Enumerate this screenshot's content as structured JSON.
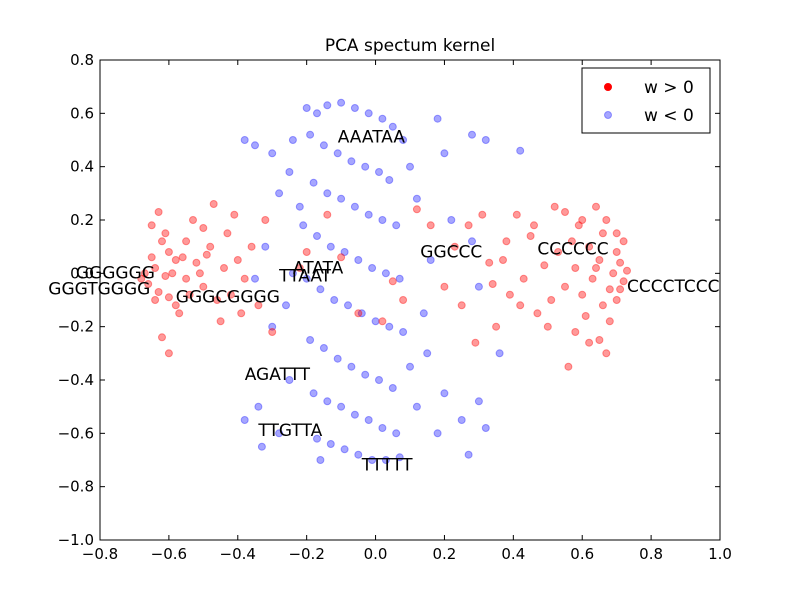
{
  "chart_data": {
    "type": "scatter",
    "title": "PCA spectum kernel",
    "xlabel": "",
    "ylabel": "",
    "xlim": [
      -0.8,
      1.0
    ],
    "ylim": [
      -1.0,
      0.8
    ],
    "xticks": [
      "−0.8",
      "−0.6",
      "−0.4",
      "−0.2",
      "0.0",
      "0.2",
      "0.4",
      "0.6",
      "0.8",
      "1.0"
    ],
    "yticks": [
      "−1.0",
      "−0.8",
      "−0.6",
      "−0.4",
      "−0.2",
      "0.0",
      "0.2",
      "0.4",
      "0.6",
      "0.8"
    ],
    "grid": false,
    "legend_position": "top-right",
    "colors": {
      "positive": "#ff0000",
      "negative": "#0000ff"
    },
    "series": [
      {
        "name": "w > 0",
        "color": "#ff0000",
        "points": [
          [
            -0.63,
            0.23
          ],
          [
            -0.65,
            0.18
          ],
          [
            -0.62,
            0.12
          ],
          [
            -0.6,
            0.08
          ],
          [
            -0.58,
            0.05
          ],
          [
            -0.64,
            0.02
          ],
          [
            -0.61,
            -0.01
          ],
          [
            -0.66,
            -0.04
          ],
          [
            -0.63,
            -0.07
          ],
          [
            -0.6,
            -0.09
          ],
          [
            -0.58,
            -0.12
          ],
          [
            -0.55,
            -0.02
          ],
          [
            -0.52,
            0.04
          ],
          [
            -0.5,
            -0.05
          ],
          [
            -0.48,
            0.1
          ],
          [
            -0.46,
            -0.1
          ],
          [
            -0.44,
            0.02
          ],
          [
            -0.42,
            -0.08
          ],
          [
            -0.55,
            0.12
          ],
          [
            -0.57,
            -0.15
          ],
          [
            -0.62,
            -0.24
          ],
          [
            -0.6,
            -0.3
          ],
          [
            -0.53,
            0.2
          ],
          [
            -0.5,
            0.17
          ],
          [
            -0.47,
            0.26
          ],
          [
            -0.45,
            -0.18
          ],
          [
            -0.43,
            0.15
          ],
          [
            -0.4,
            0.05
          ],
          [
            -0.38,
            -0.02
          ],
          [
            -0.36,
            0.1
          ],
          [
            -0.34,
            -0.12
          ],
          [
            -0.32,
            0.2
          ],
          [
            -0.3,
            -0.22
          ],
          [
            -0.41,
            0.22
          ],
          [
            -0.39,
            -0.15
          ],
          [
            -0.67,
            0.0
          ],
          [
            -0.68,
            -0.02
          ],
          [
            -0.65,
            0.06
          ],
          [
            -0.59,
            0.0
          ],
          [
            -0.56,
            0.06
          ],
          [
            -0.54,
            -0.08
          ],
          [
            -0.51,
            0.0
          ],
          [
            -0.49,
            0.07
          ],
          [
            -0.64,
            -0.1
          ],
          [
            -0.61,
            0.15
          ],
          [
            0.72,
            0.12
          ],
          [
            0.7,
            0.08
          ],
          [
            0.71,
            0.04
          ],
          [
            0.69,
            0.0
          ],
          [
            0.72,
            -0.03
          ],
          [
            0.68,
            -0.06
          ],
          [
            0.7,
            -0.1
          ],
          [
            0.66,
            0.15
          ],
          [
            0.67,
            0.2
          ],
          [
            0.64,
            0.25
          ],
          [
            0.65,
            0.05
          ],
          [
            0.63,
            -0.02
          ],
          [
            0.62,
            0.1
          ],
          [
            0.6,
            -0.08
          ],
          [
            0.58,
            0.02
          ],
          [
            0.66,
            -0.12
          ],
          [
            0.68,
            -0.18
          ],
          [
            0.65,
            -0.25
          ],
          [
            0.67,
            -0.3
          ],
          [
            0.61,
            -0.16
          ],
          [
            0.59,
            0.18
          ],
          [
            0.57,
            0.12
          ],
          [
            0.55,
            -0.05
          ],
          [
            0.53,
            0.08
          ],
          [
            0.51,
            -0.1
          ],
          [
            0.49,
            0.03
          ],
          [
            0.47,
            -0.15
          ],
          [
            0.45,
            0.14
          ],
          [
            0.43,
            -0.02
          ],
          [
            0.41,
            0.22
          ],
          [
            0.39,
            -0.08
          ],
          [
            0.37,
            0.05
          ],
          [
            0.35,
            -0.2
          ],
          [
            0.33,
            0.04
          ],
          [
            0.31,
            0.22
          ],
          [
            0.29,
            -0.26
          ],
          [
            0.27,
            0.18
          ],
          [
            0.25,
            -0.12
          ],
          [
            0.23,
            0.1
          ],
          [
            0.2,
            -0.05
          ],
          [
            0.52,
            0.25
          ],
          [
            0.55,
            0.23
          ],
          [
            0.58,
            -0.22
          ],
          [
            0.62,
            -0.26
          ],
          [
            0.56,
            -0.35
          ],
          [
            0.7,
            0.15
          ],
          [
            0.73,
            0.01
          ],
          [
            0.71,
            -0.06
          ],
          [
            0.64,
            0.02
          ],
          [
            0.6,
            0.2
          ],
          [
            0.5,
            -0.2
          ],
          [
            0.46,
            0.18
          ],
          [
            0.42,
            -0.12
          ],
          [
            0.38,
            0.12
          ],
          [
            0.34,
            -0.04
          ],
          [
            -0.2,
            0.08
          ],
          [
            -0.1,
            0.06
          ],
          [
            0.05,
            -0.03
          ],
          [
            0.12,
            0.24
          ],
          [
            -0.05,
            -0.15
          ],
          [
            0.16,
            0.18
          ],
          [
            -0.22,
            0.02
          ],
          [
            0.08,
            -0.1
          ],
          [
            -0.14,
            0.22
          ],
          [
            0.02,
            -0.18
          ]
        ]
      },
      {
        "name": "w < 0",
        "color": "#0000ff",
        "points": [
          [
            -0.2,
            0.62
          ],
          [
            -0.17,
            0.6
          ],
          [
            -0.14,
            0.63
          ],
          [
            -0.1,
            0.64
          ],
          [
            -0.06,
            0.62
          ],
          [
            -0.02,
            0.6
          ],
          [
            0.02,
            0.58
          ],
          [
            0.05,
            0.55
          ],
          [
            -0.19,
            0.52
          ],
          [
            -0.15,
            0.48
          ],
          [
            -0.11,
            0.45
          ],
          [
            -0.07,
            0.42
          ],
          [
            -0.03,
            0.4
          ],
          [
            0.01,
            0.38
          ],
          [
            0.04,
            0.35
          ],
          [
            -0.18,
            0.34
          ],
          [
            -0.14,
            0.3
          ],
          [
            -0.1,
            0.28
          ],
          [
            -0.06,
            0.25
          ],
          [
            -0.02,
            0.22
          ],
          [
            0.02,
            0.2
          ],
          [
            0.06,
            0.18
          ],
          [
            -0.21,
            0.18
          ],
          [
            -0.17,
            0.14
          ],
          [
            -0.13,
            0.1
          ],
          [
            -0.09,
            0.08
          ],
          [
            -0.05,
            0.05
          ],
          [
            -0.01,
            0.02
          ],
          [
            0.03,
            0.0
          ],
          [
            0.07,
            -0.02
          ],
          [
            -0.2,
            -0.02
          ],
          [
            -0.16,
            -0.06
          ],
          [
            -0.12,
            -0.1
          ],
          [
            -0.08,
            -0.12
          ],
          [
            -0.04,
            -0.15
          ],
          [
            0.0,
            -0.18
          ],
          [
            0.04,
            -0.2
          ],
          [
            0.08,
            -0.22
          ],
          [
            -0.19,
            -0.25
          ],
          [
            -0.15,
            -0.28
          ],
          [
            -0.11,
            -0.32
          ],
          [
            -0.07,
            -0.35
          ],
          [
            -0.03,
            -0.38
          ],
          [
            0.01,
            -0.4
          ],
          [
            0.05,
            -0.43
          ],
          [
            -0.18,
            -0.45
          ],
          [
            -0.14,
            -0.48
          ],
          [
            -0.1,
            -0.5
          ],
          [
            -0.06,
            -0.53
          ],
          [
            -0.02,
            -0.55
          ],
          [
            0.02,
            -0.58
          ],
          [
            0.06,
            -0.6
          ],
          [
            -0.17,
            -0.62
          ],
          [
            -0.13,
            -0.64
          ],
          [
            -0.09,
            -0.66
          ],
          [
            -0.05,
            -0.68
          ],
          [
            -0.01,
            -0.7
          ],
          [
            0.03,
            -0.7
          ],
          [
            0.07,
            -0.69
          ],
          [
            -0.16,
            -0.7
          ],
          [
            -0.35,
            0.48
          ],
          [
            -0.38,
            0.5
          ],
          [
            -0.3,
            0.45
          ],
          [
            -0.25,
            0.38
          ],
          [
            0.2,
            0.45
          ],
          [
            0.28,
            0.52
          ],
          [
            0.32,
            0.5
          ],
          [
            0.42,
            0.46
          ],
          [
            0.18,
            0.58
          ],
          [
            -0.28,
            0.3
          ],
          [
            -0.32,
            0.1
          ],
          [
            -0.35,
            -0.02
          ],
          [
            -0.3,
            -0.2
          ],
          [
            -0.34,
            -0.5
          ],
          [
            -0.38,
            -0.55
          ],
          [
            -0.33,
            -0.65
          ],
          [
            -0.28,
            -0.6
          ],
          [
            -0.25,
            -0.4
          ],
          [
            0.15,
            -0.3
          ],
          [
            0.2,
            -0.45
          ],
          [
            0.25,
            -0.55
          ],
          [
            0.3,
            -0.48
          ],
          [
            0.32,
            -0.58
          ],
          [
            0.27,
            -0.68
          ],
          [
            0.18,
            -0.6
          ],
          [
            0.12,
            -0.5
          ],
          [
            0.1,
            -0.35
          ],
          [
            0.14,
            -0.15
          ],
          [
            0.16,
            0.05
          ],
          [
            0.12,
            0.28
          ],
          [
            0.1,
            0.4
          ],
          [
            0.22,
            0.2
          ],
          [
            0.28,
            0.12
          ],
          [
            0.3,
            -0.05
          ],
          [
            0.36,
            -0.3
          ],
          [
            -0.24,
            0.0
          ],
          [
            -0.26,
            -0.12
          ],
          [
            -0.22,
            0.25
          ],
          [
            -0.24,
            0.5
          ],
          [
            0.08,
            0.5
          ]
        ]
      }
    ],
    "annotations": [
      {
        "text": "AAATAA",
        "x": -0.11,
        "y": 0.49
      },
      {
        "text": "GGCCC",
        "x": 0.13,
        "y": 0.06
      },
      {
        "text": "CCCCCC",
        "x": 0.47,
        "y": 0.07
      },
      {
        "text": "CCCCTCCC",
        "x": 0.73,
        "y": -0.07
      },
      {
        "text": "GGGGGG",
        "x": -0.87,
        "y": -0.02
      },
      {
        "text": "GGGTGGGG",
        "x": -0.95,
        "y": -0.08
      },
      {
        "text": "GGGCGGGG",
        "x": -0.58,
        "y": -0.11
      },
      {
        "text": "ATATA",
        "x": -0.24,
        "y": 0.0
      },
      {
        "text": "TTAAT",
        "x": -0.28,
        "y": -0.03
      },
      {
        "text": "AGATTT",
        "x": -0.38,
        "y": -0.4
      },
      {
        "text": "TTGTTA",
        "x": -0.34,
        "y": -0.61
      },
      {
        "text": "TTTTT",
        "x": -0.04,
        "y": -0.74
      }
    ]
  }
}
